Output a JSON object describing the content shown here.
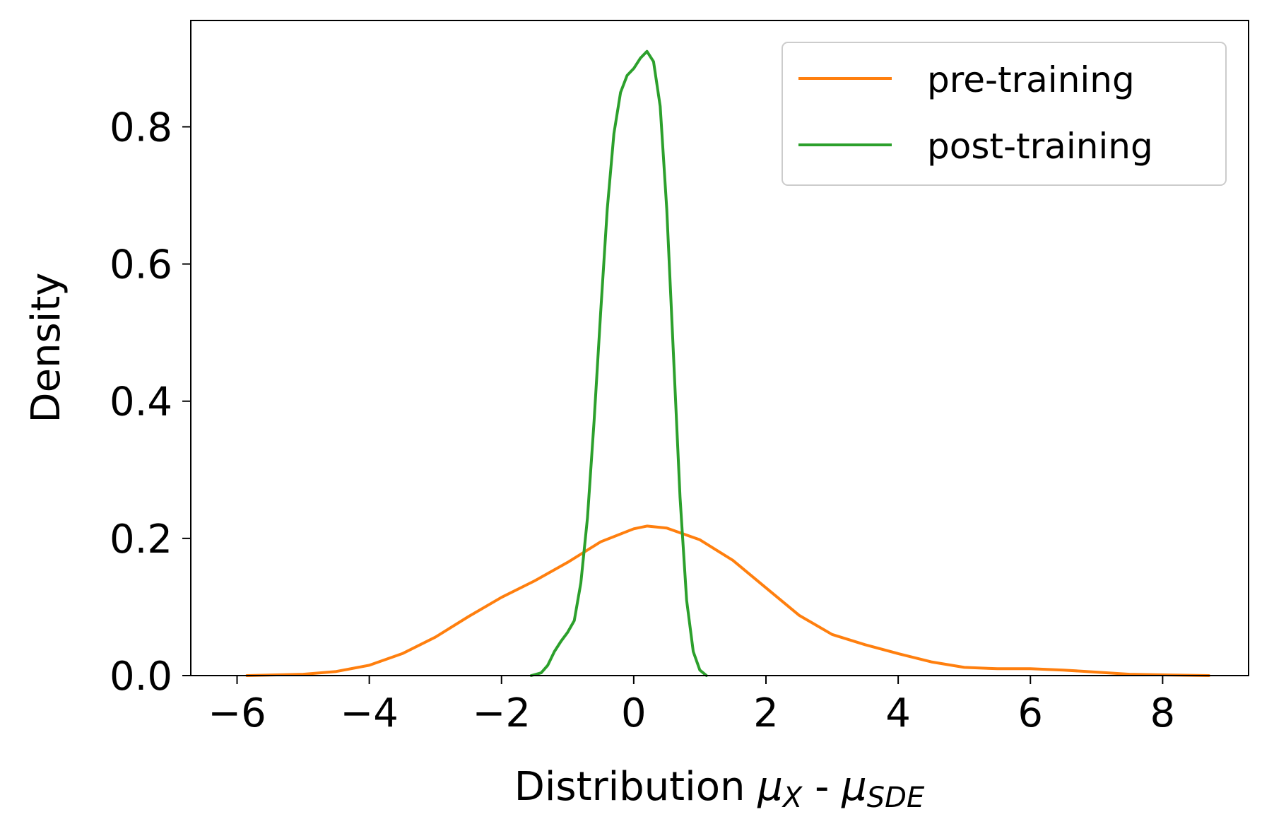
{
  "chart_data": {
    "type": "line",
    "title": "",
    "xlabel": {
      "prefix": "Distribution ",
      "mu1": "μ",
      "sub1": "X",
      "sep": " - ",
      "mu2": "μ",
      "sub2": "SDE"
    },
    "ylabel": "Density",
    "xlim": [
      -6.7,
      9.3
    ],
    "ylim": [
      0,
      0.955
    ],
    "xticks": [
      {
        "value": -6,
        "label": "−6"
      },
      {
        "value": -4,
        "label": "−4"
      },
      {
        "value": -2,
        "label": "−2"
      },
      {
        "value": 0,
        "label": "0"
      },
      {
        "value": 2,
        "label": "2"
      },
      {
        "value": 4,
        "label": "4"
      },
      {
        "value": 6,
        "label": "6"
      },
      {
        "value": 8,
        "label": "8"
      }
    ],
    "yticks": [
      {
        "value": 0.0,
        "label": "0.0"
      },
      {
        "value": 0.2,
        "label": "0.2"
      },
      {
        "value": 0.4,
        "label": "0.4"
      },
      {
        "value": 0.6,
        "label": "0.6"
      },
      {
        "value": 0.8,
        "label": "0.8"
      }
    ],
    "grid": false,
    "legend_position": "top-right",
    "series": [
      {
        "name": "pre-training",
        "color": "#ff7f0e",
        "points": [
          [
            -5.85,
            0.0
          ],
          [
            -5.0,
            0.002
          ],
          [
            -4.5,
            0.006
          ],
          [
            -4.0,
            0.015
          ],
          [
            -3.5,
            0.032
          ],
          [
            -3.0,
            0.056
          ],
          [
            -2.5,
            0.086
          ],
          [
            -2.0,
            0.114
          ],
          [
            -1.5,
            0.138
          ],
          [
            -1.0,
            0.165
          ],
          [
            -0.5,
            0.195
          ],
          [
            0.0,
            0.214
          ],
          [
            0.2,
            0.218
          ],
          [
            0.5,
            0.215
          ],
          [
            1.0,
            0.198
          ],
          [
            1.5,
            0.168
          ],
          [
            2.0,
            0.128
          ],
          [
            2.5,
            0.088
          ],
          [
            3.0,
            0.06
          ],
          [
            3.5,
            0.045
          ],
          [
            4.0,
            0.032
          ],
          [
            4.5,
            0.02
          ],
          [
            5.0,
            0.012
          ],
          [
            5.5,
            0.01
          ],
          [
            6.0,
            0.01
          ],
          [
            6.5,
            0.008
          ],
          [
            7.0,
            0.005
          ],
          [
            7.5,
            0.002
          ],
          [
            8.0,
            0.001
          ],
          [
            8.7,
            0.0
          ]
        ]
      },
      {
        "name": "post-training",
        "color": "#2ca02c",
        "points": [
          [
            -1.55,
            0.0
          ],
          [
            -1.4,
            0.004
          ],
          [
            -1.3,
            0.015
          ],
          [
            -1.2,
            0.035
          ],
          [
            -1.1,
            0.05
          ],
          [
            -1.0,
            0.063
          ],
          [
            -0.9,
            0.08
          ],
          [
            -0.8,
            0.135
          ],
          [
            -0.7,
            0.23
          ],
          [
            -0.6,
            0.37
          ],
          [
            -0.5,
            0.53
          ],
          [
            -0.4,
            0.68
          ],
          [
            -0.3,
            0.79
          ],
          [
            -0.2,
            0.85
          ],
          [
            -0.1,
            0.875
          ],
          [
            0.0,
            0.885
          ],
          [
            0.1,
            0.9
          ],
          [
            0.2,
            0.91
          ],
          [
            0.3,
            0.895
          ],
          [
            0.4,
            0.83
          ],
          [
            0.5,
            0.68
          ],
          [
            0.6,
            0.47
          ],
          [
            0.7,
            0.26
          ],
          [
            0.8,
            0.11
          ],
          [
            0.9,
            0.035
          ],
          [
            1.0,
            0.008
          ],
          [
            1.1,
            0.0
          ]
        ]
      }
    ]
  }
}
